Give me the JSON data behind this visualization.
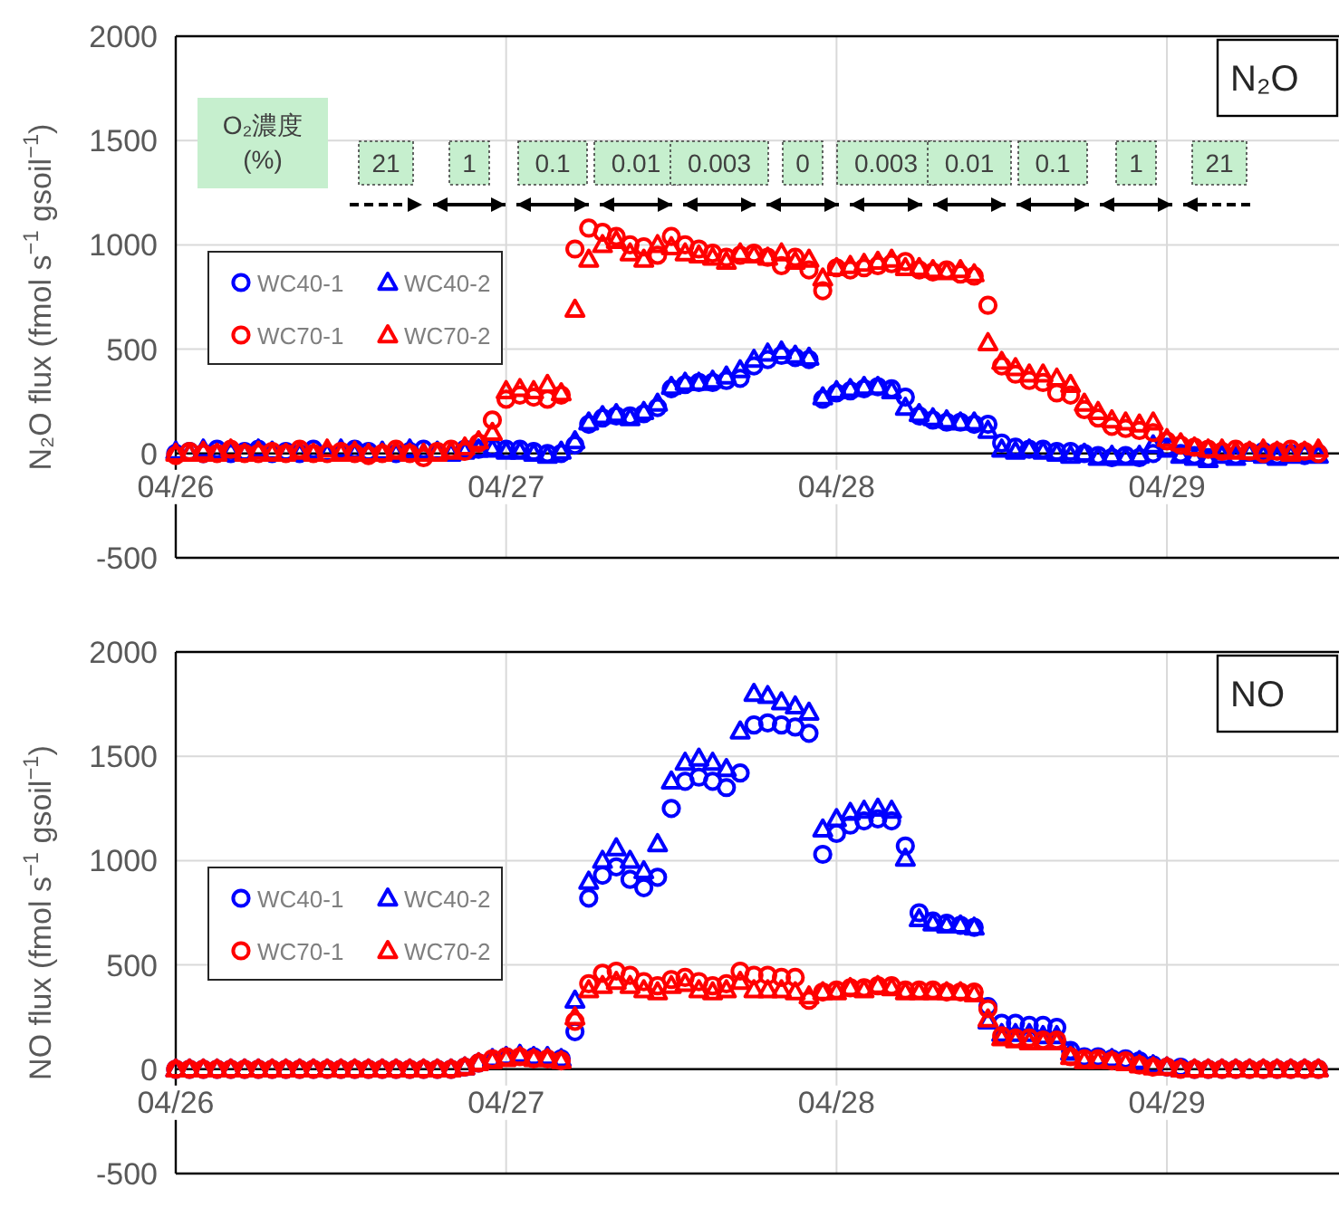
{
  "chart_data": [
    {
      "type": "scatter",
      "title": "N₂O",
      "ylabel": "N₂O flux (fmol s$^{−1}$ gsoil$^{−1}$)",
      "xlim": [
        "--04-26T00:00",
        "--04-29T12:30"
      ],
      "ylim": [
        -500,
        2000
      ],
      "yticks": [
        -500,
        0,
        500,
        1000,
        1500,
        2000
      ],
      "xticks": [
        {
          "value": "--04-26",
          "label": "04/26"
        },
        {
          "value": "--04-27",
          "label": "04/27"
        },
        {
          "value": "--04-28",
          "label": "04/28"
        },
        {
          "value": "--04-29",
          "label": "04/29"
        }
      ],
      "grid": true,
      "legend": "left",
      "annotations": [
        "O₂濃度 (%)",
        "21",
        "1",
        "0.1",
        "0.01",
        "0.003",
        "0",
        "0.003",
        "0.01",
        "0.1",
        "1",
        "21"
      ],
      "x": [
        "--04-26T00:00",
        "--04-26T01:00",
        "--04-26T02:00",
        "--04-26T03:00",
        "--04-26T04:00",
        "--04-26T05:00",
        "--04-26T06:00",
        "--04-26T07:00",
        "--04-26T08:00",
        "--04-26T09:00",
        "--04-26T10:00",
        "--04-26T11:00",
        "--04-26T12:00",
        "--04-26T13:00",
        "--04-26T14:00",
        "--04-26T15:00",
        "--04-26T16:00",
        "--04-26T17:00",
        "--04-26T18:00",
        "--04-26T19:00",
        "--04-26T20:00",
        "--04-26T21:00",
        "--04-26T22:00",
        "--04-26T23:00",
        "--04-27T00:00",
        "--04-27T01:00",
        "--04-27T02:00",
        "--04-27T03:00",
        "--04-27T04:00",
        "--04-27T05:00",
        "--04-27T06:00",
        "--04-27T07:00",
        "--04-27T08:00",
        "--04-27T09:00",
        "--04-27T10:00",
        "--04-27T11:00",
        "--04-27T12:00",
        "--04-27T13:00",
        "--04-27T14:00",
        "--04-27T15:00",
        "--04-27T16:00",
        "--04-27T17:00",
        "--04-27T18:00",
        "--04-27T19:00",
        "--04-27T20:00",
        "--04-27T21:00",
        "--04-27T22:00",
        "--04-27T23:00",
        "--04-28T00:00",
        "--04-28T01:00",
        "--04-28T02:00",
        "--04-28T03:00",
        "--04-28T04:00",
        "--04-28T05:00",
        "--04-28T06:00",
        "--04-28T07:00",
        "--04-28T08:00",
        "--04-28T09:00",
        "--04-28T10:00",
        "--04-28T11:00",
        "--04-28T12:00",
        "--04-28T13:00",
        "--04-28T14:00",
        "--04-28T15:00",
        "--04-28T16:00",
        "--04-28T17:00",
        "--04-28T18:00",
        "--04-28T19:00",
        "--04-28T20:00",
        "--04-28T21:00",
        "--04-28T22:00",
        "--04-28T23:00",
        "--04-29T00:00",
        "--04-29T01:00",
        "--04-29T02:00",
        "--04-29T03:00",
        "--04-29T04:00",
        "--04-29T05:00",
        "--04-29T06:00",
        "--04-29T07:00",
        "--04-29T08:00",
        "--04-29T09:00",
        "--04-29T10:00",
        "--04-29T11:00"
      ],
      "series": [
        {
          "name": "WC40-1",
          "color": "#0000ff",
          "marker": "circle",
          "values": [
            0,
            10,
            0,
            20,
            0,
            10,
            20,
            0,
            10,
            0,
            20,
            null,
            null,
            20,
            10,
            null,
            0,
            10,
            20,
            null,
            null,
            20,
            20,
            30,
            20,
            20,
            10,
            0,
            0,
            40,
            140,
            170,
            180,
            180,
            190,
            220,
            310,
            330,
            340,
            340,
            350,
            360,
            420,
            450,
            470,
            460,
            450,
            260,
            290,
            300,
            310,
            320,
            310,
            270,
            180,
            160,
            150,
            150,
            140,
            140,
            50,
            30,
            20,
            20,
            10,
            10,
            0,
            -10,
            -20,
            -10,
            -20,
            0,
            30,
            0,
            -10,
            -20,
            null,
            -10,
            null,
            10,
            -10,
            0,
            -10,
            0
          ]
        },
        {
          "name": "WC40-2",
          "color": "#0000ff",
          "marker": "triangle",
          "values": [
            10,
            0,
            20,
            0,
            10,
            0,
            20,
            10,
            0,
            0,
            null,
            0,
            20,
            0,
            0,
            10,
            0,
            20,
            0,
            10,
            0,
            10,
            20,
            20,
            10,
            10,
            0,
            -10,
            10,
            60,
            150,
            180,
            190,
            170,
            200,
            240,
            320,
            340,
            340,
            350,
            370,
            400,
            450,
            480,
            490,
            470,
            460,
            270,
            300,
            310,
            320,
            320,
            300,
            220,
            190,
            170,
            160,
            150,
            150,
            110,
            20,
            10,
            20,
            10,
            0,
            -10,
            0,
            -20,
            -10,
            -20,
            -10,
            40,
            20,
            -10,
            -20,
            -30,
            -10,
            -20,
            0,
            -10,
            -20,
            -10,
            0,
            -10
          ]
        },
        {
          "name": "WC70-1",
          "color": "#ff0000",
          "marker": "circle",
          "values": [
            -10,
            10,
            0,
            0,
            20,
            0,
            0,
            10,
            0,
            20,
            0,
            0,
            10,
            0,
            -10,
            0,
            20,
            0,
            -20,
            10,
            20,
            10,
            50,
            160,
            260,
            280,
            270,
            260,
            280,
            980,
            1080,
            1060,
            1040,
            1000,
            990,
            950,
            1040,
            1000,
            980,
            960,
            940,
            950,
            960,
            940,
            900,
            940,
            880,
            780,
            890,
            880,
            890,
            900,
            910,
            920,
            880,
            870,
            880,
            860,
            850,
            710,
            420,
            380,
            350,
            340,
            290,
            280,
            210,
            170,
            130,
            120,
            110,
            100,
            60,
            40,
            30,
            20,
            10,
            20,
            10,
            0,
            10,
            20,
            10,
            0
          ]
        },
        {
          "name": "WC70-2",
          "color": "#ff0000",
          "marker": "triangle",
          "values": [
            0,
            0,
            10,
            0,
            20,
            0,
            10,
            0,
            0,
            10,
            0,
            20,
            0,
            10,
            0,
            0,
            10,
            0,
            0,
            0,
            10,
            30,
            60,
            100,
            300,
            310,
            300,
            330,
            290,
            690,
            930,
            1000,
            1020,
            960,
            930,
            1000,
            990,
            960,
            950,
            940,
            920,
            960,
            950,
            940,
            960,
            920,
            930,
            840,
            890,
            900,
            910,
            920,
            930,
            890,
            890,
            880,
            870,
            880,
            860,
            530,
            440,
            410,
            380,
            380,
            360,
            330,
            240,
            200,
            160,
            150,
            140,
            150,
            70,
            50,
            30,
            20,
            20,
            10,
            10,
            20,
            10,
            0,
            10,
            20
          ]
        }
      ]
    },
    {
      "type": "scatter",
      "title": "NO",
      "ylabel": "NO flux (fmol s$^{−1}$ gsoil$^{−1}$)",
      "xlim": [
        "--04-26T00:00",
        "--04-29T12:30"
      ],
      "ylim": [
        -500,
        2000
      ],
      "yticks": [
        -500,
        0,
        500,
        1000,
        1500,
        2000
      ],
      "xticks": [
        {
          "value": "--04-26",
          "label": "04/26"
        },
        {
          "value": "--04-27",
          "label": "04/27"
        },
        {
          "value": "--04-28",
          "label": "04/28"
        },
        {
          "value": "--04-29",
          "label": "04/29"
        }
      ],
      "grid": true,
      "legend": "left",
      "x": [
        "--04-26T00:00",
        "--04-26T01:00",
        "--04-26T02:00",
        "--04-26T03:00",
        "--04-26T04:00",
        "--04-26T05:00",
        "--04-26T06:00",
        "--04-26T07:00",
        "--04-26T08:00",
        "--04-26T09:00",
        "--04-26T10:00",
        "--04-26T11:00",
        "--04-26T12:00",
        "--04-26T13:00",
        "--04-26T14:00",
        "--04-26T15:00",
        "--04-26T16:00",
        "--04-26T17:00",
        "--04-26T18:00",
        "--04-26T19:00",
        "--04-26T20:00",
        "--04-26T21:00",
        "--04-26T22:00",
        "--04-26T23:00",
        "--04-27T00:00",
        "--04-27T01:00",
        "--04-27T02:00",
        "--04-27T03:00",
        "--04-27T04:00",
        "--04-27T05:00",
        "--04-27T06:00",
        "--04-27T07:00",
        "--04-27T08:00",
        "--04-27T09:00",
        "--04-27T10:00",
        "--04-27T11:00",
        "--04-27T12:00",
        "--04-27T13:00",
        "--04-27T14:00",
        "--04-27T15:00",
        "--04-27T16:00",
        "--04-27T17:00",
        "--04-27T18:00",
        "--04-27T19:00",
        "--04-27T20:00",
        "--04-27T21:00",
        "--04-27T22:00",
        "--04-27T23:00",
        "--04-28T00:00",
        "--04-28T01:00",
        "--04-28T02:00",
        "--04-28T03:00",
        "--04-28T04:00",
        "--04-28T05:00",
        "--04-28T06:00",
        "--04-28T07:00",
        "--04-28T08:00",
        "--04-28T09:00",
        "--04-28T10:00",
        "--04-28T11:00",
        "--04-28T12:00",
        "--04-28T13:00",
        "--04-28T14:00",
        "--04-28T15:00",
        "--04-28T16:00",
        "--04-28T17:00",
        "--04-28T18:00",
        "--04-28T19:00",
        "--04-28T20:00",
        "--04-28T21:00",
        "--04-28T22:00",
        "--04-28T23:00",
        "--04-29T00:00",
        "--04-29T01:00",
        "--04-29T02:00",
        "--04-29T03:00",
        "--04-29T04:00",
        "--04-29T05:00",
        "--04-29T06:00",
        "--04-29T07:00",
        "--04-29T08:00",
        "--04-29T09:00",
        "--04-29T10:00",
        "--04-29T11:00"
      ],
      "series": [
        {
          "name": "WC40-1",
          "color": "#0000ff",
          "marker": "circle",
          "values": [
            0,
            0,
            0,
            0,
            0,
            0,
            0,
            0,
            0,
            0,
            0,
            0,
            0,
            0,
            0,
            0,
            0,
            0,
            0,
            0,
            0,
            10,
            30,
            null,
            60,
            null,
            60,
            null,
            50,
            180,
            820,
            930,
            970,
            910,
            870,
            920,
            1250,
            1380,
            1400,
            1380,
            1350,
            1420,
            1650,
            1660,
            1650,
            1640,
            1610,
            1030,
            1130,
            1170,
            1190,
            1200,
            1190,
            1070,
            750,
            710,
            700,
            690,
            680,
            300,
            220,
            220,
            210,
            210,
            200,
            90,
            60,
            60,
            50,
            50,
            40,
            20,
            10,
            10,
            0,
            0,
            0,
            0,
            0,
            0,
            0,
            0,
            0,
            0
          ]
        },
        {
          "name": "WC40-2",
          "color": "#0000ff",
          "marker": "triangle",
          "values": [
            0,
            0,
            0,
            0,
            0,
            0,
            0,
            0,
            0,
            0,
            0,
            0,
            0,
            0,
            0,
            0,
            0,
            0,
            0,
            0,
            0,
            10,
            30,
            50,
            60,
            70,
            60,
            60,
            50,
            330,
            900,
            1000,
            1060,
            1000,
            950,
            1080,
            1380,
            1470,
            1490,
            1470,
            1440,
            1620,
            1800,
            1790,
            1760,
            1740,
            1710,
            1150,
            1200,
            1230,
            1240,
            1250,
            1240,
            1010,
            720,
            700,
            690,
            690,
            680,
            230,
            170,
            170,
            170,
            160,
            160,
            80,
            null,
            null,
            50,
            null,
            40,
            20,
            10,
            0,
            0,
            0,
            0,
            0,
            0,
            0,
            0,
            0,
            0,
            0
          ]
        },
        {
          "name": "WC70-1",
          "color": "#ff0000",
          "marker": "circle",
          "values": [
            0,
            0,
            0,
            0,
            0,
            0,
            0,
            0,
            0,
            0,
            0,
            0,
            0,
            0,
            0,
            0,
            0,
            0,
            0,
            0,
            0,
            10,
            30,
            50,
            60,
            60,
            50,
            50,
            40,
            230,
            410,
            460,
            470,
            450,
            420,
            400,
            430,
            440,
            420,
            400,
            410,
            470,
            450,
            450,
            440,
            440,
            330,
            370,
            380,
            390,
            390,
            400,
            400,
            380,
            380,
            380,
            370,
            370,
            370,
            290,
            160,
            150,
            150,
            140,
            140,
            60,
            50,
            50,
            40,
            40,
            20,
            10,
            10,
            0,
            0,
            0,
            0,
            0,
            0,
            0,
            0,
            0,
            0,
            0
          ]
        },
        {
          "name": "WC70-2",
          "color": "#ff0000",
          "marker": "triangle",
          "values": [
            0,
            0,
            0,
            0,
            0,
            0,
            0,
            0,
            0,
            0,
            0,
            0,
            0,
            0,
            0,
            0,
            0,
            0,
            0,
            0,
            0,
            10,
            30,
            40,
            50,
            60,
            50,
            50,
            40,
            250,
            380,
            400,
            420,
            400,
            380,
            370,
            400,
            410,
            380,
            370,
            380,
            420,
            380,
            380,
            380,
            370,
            350,
            370,
            370,
            390,
            380,
            400,
            390,
            370,
            370,
            370,
            370,
            370,
            360,
            240,
            150,
            140,
            130,
            130,
            130,
            60,
            40,
            40,
            40,
            30,
            20,
            10,
            10,
            0,
            0,
            0,
            0,
            0,
            0,
            0,
            0,
            0,
            0,
            0
          ]
        }
      ]
    }
  ]
}
